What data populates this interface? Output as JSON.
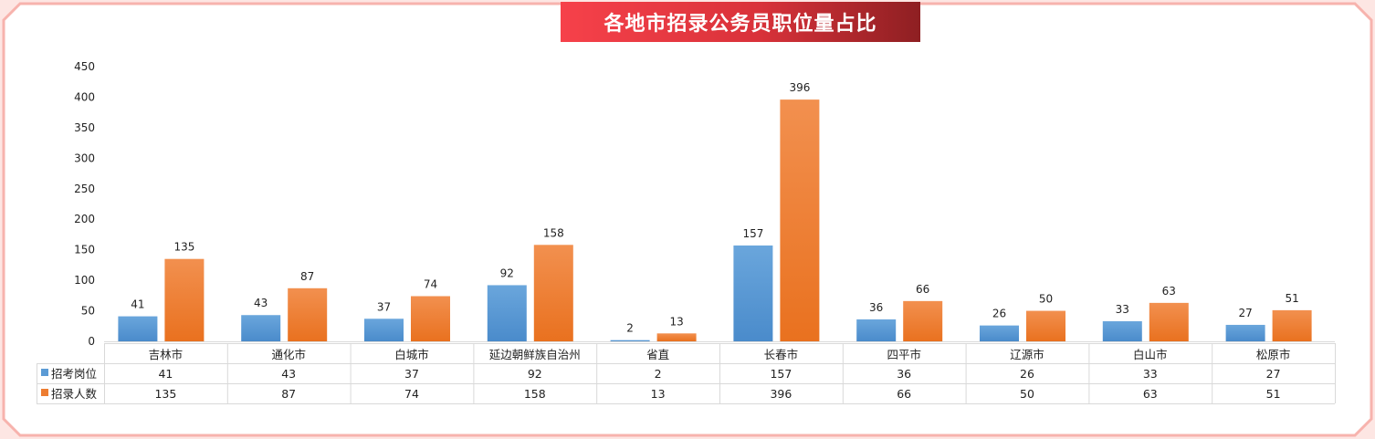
{
  "title": "各地市招录公务员职位量占比",
  "colors": {
    "positions": "#5b9bd5",
    "recruits": "#ed7d31",
    "banner_start": "#f6414a",
    "banner_end": "#8e1f22",
    "frame": "#f7b3ad",
    "background": "#fde6e3"
  },
  "chart_data": {
    "type": "bar",
    "title": "各地市招录公务员职位量占比",
    "categories": [
      "吉林市",
      "通化市",
      "白城市",
      "延边朝鲜族自治州",
      "省直",
      "长春市",
      "四平市",
      "辽源市",
      "白山市",
      "松原市"
    ],
    "series": [
      {
        "name": "招考岗位",
        "values": [
          41,
          43,
          37,
          92,
          2,
          157,
          36,
          26,
          33,
          27
        ],
        "color": "#5b9bd5"
      },
      {
        "name": "招录人数",
        "values": [
          135,
          87,
          74,
          158,
          13,
          396,
          66,
          50,
          63,
          51
        ],
        "color": "#ed7d31"
      }
    ],
    "ylim": [
      0,
      450
    ],
    "yticks": [
      0,
      50,
      100,
      150,
      200,
      250,
      300,
      350,
      400,
      450
    ],
    "xlabel": "",
    "ylabel": "",
    "grid": false,
    "data_labels": true,
    "data_table": true
  }
}
